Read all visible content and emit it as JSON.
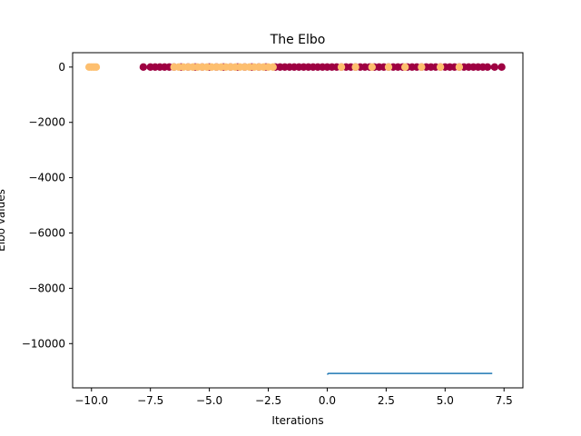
{
  "chart_data": {
    "type": "scatter",
    "title": "The Elbo",
    "xlabel": "Iterations",
    "ylabel": "Elbo values",
    "xlim": [
      -10.8,
      8.3
    ],
    "ylim": [
      -11600,
      520
    ],
    "xticks": [
      -10.0,
      -7.5,
      -5.0,
      -2.5,
      0.0,
      2.5,
      5.0,
      7.5
    ],
    "xtick_labels": [
      "−10.0",
      "−7.5",
      "−5.0",
      "−2.5",
      "0.0",
      "2.5",
      "5.0",
      "7.5"
    ],
    "yticks": [
      0,
      -2000,
      -4000,
      -6000,
      -8000,
      -10000
    ],
    "ytick_labels": [
      "0",
      "−2000",
      "−4000",
      "−6000",
      "−8000",
      "−10000"
    ],
    "grid": false,
    "colors": {
      "scatter_dark": "#9e0142",
      "scatter_light": "#fdbf6f",
      "line": "#1f77b4"
    },
    "series": [
      {
        "kind": "scatter",
        "color": "#9e0142",
        "x": [
          -7.8,
          -7.5,
          -7.3,
          -7.1,
          -6.9,
          -6.7,
          -6.5,
          -6.2,
          -5.9,
          -5.6,
          -5.3,
          -5.0,
          -4.7,
          -4.4,
          -4.1,
          -3.8,
          -3.5,
          -3.2,
          -2.9,
          -2.6,
          -2.2,
          -2.0,
          -1.8,
          -1.6,
          -1.4,
          -1.2,
          -1.0,
          -0.8,
          -0.6,
          -0.4,
          -0.2,
          0.0,
          0.2,
          0.4,
          0.6,
          0.8,
          1.0,
          1.2,
          1.4,
          1.6,
          1.8,
          2.0,
          2.2,
          2.4,
          2.6,
          2.8,
          3.0,
          3.2,
          3.4,
          3.6,
          3.8,
          4.0,
          4.2,
          4.4,
          4.6,
          4.8,
          5.0,
          5.2,
          5.4,
          5.6,
          5.8,
          6.0,
          6.2,
          6.4,
          6.6,
          6.8,
          7.1,
          7.4
        ],
        "y": [
          0,
          0,
          0,
          0,
          0,
          0,
          0,
          0,
          0,
          0,
          0,
          0,
          0,
          0,
          0,
          0,
          0,
          0,
          0,
          0,
          0,
          0,
          0,
          0,
          0,
          0,
          0,
          0,
          0,
          0,
          0,
          0,
          0,
          0,
          0,
          0,
          0,
          0,
          0,
          0,
          0,
          0,
          0,
          0,
          0,
          0,
          0,
          0,
          0,
          0,
          0,
          0,
          0,
          0,
          0,
          0,
          0,
          0,
          0,
          0,
          0,
          0,
          0,
          0,
          0,
          0,
          0,
          0
        ]
      },
      {
        "kind": "scatter",
        "color": "#fdbf6f",
        "x": [
          -10.1,
          -10.0,
          -9.9,
          -9.8,
          -6.5,
          -6.3,
          -6.1,
          -5.9,
          -5.7,
          -5.5,
          -5.3,
          -5.1,
          -4.9,
          -4.7,
          -4.5,
          -4.3,
          -4.1,
          -3.9,
          -3.7,
          -3.5,
          -3.3,
          -3.1,
          -2.9,
          -2.7,
          -2.5,
          -2.3,
          0.6,
          1.2,
          1.9,
          2.6,
          3.3,
          4.0,
          4.8,
          5.6
        ],
        "y": [
          0,
          0,
          0,
          0,
          0,
          0,
          0,
          0,
          0,
          0,
          0,
          0,
          0,
          0,
          0,
          0,
          0,
          0,
          0,
          0,
          0,
          0,
          0,
          0,
          0,
          0,
          0,
          0,
          0,
          0,
          0,
          0,
          0,
          0
        ]
      },
      {
        "kind": "line",
        "color": "#1f77b4",
        "x": [
          0.0,
          0.05,
          7.0
        ],
        "y": [
          -11120,
          -11080,
          -11080
        ]
      }
    ]
  }
}
